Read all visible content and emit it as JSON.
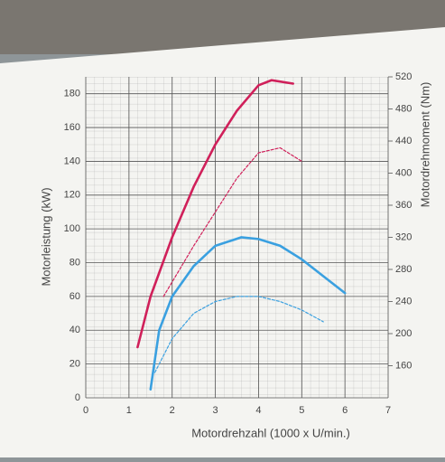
{
  "chart_data": {
    "type": "line",
    "xlabel": "Motordrehzahl (1000 x U/min.)",
    "ylabel": "Motorleistung (kW)",
    "y2label": "Motordrehmoment (Nm)",
    "xlim": [
      0,
      7
    ],
    "xticks": [
      0,
      1,
      2,
      3,
      4,
      5,
      6,
      7
    ],
    "ylim": [
      0,
      190
    ],
    "yticks": [
      0,
      20,
      40,
      60,
      80,
      100,
      120,
      140,
      160,
      180
    ],
    "y2lim": [
      120,
      520
    ],
    "y2ticks": [
      160,
      200,
      240,
      280,
      320,
      360,
      400,
      440,
      480,
      520
    ],
    "grid": true,
    "series": [
      {
        "color": "#d0205a",
        "dash": false,
        "x": [
          1.2,
          1.5,
          2,
          2.5,
          3,
          3.5,
          4,
          4.3,
          4.8
        ],
        "values": [
          30,
          60,
          95,
          125,
          150,
          170,
          185,
          188,
          186
        ]
      },
      {
        "color": "#d0205a",
        "dash": true,
        "x": [
          1.8,
          2.5,
          3,
          3.5,
          4,
          4.5,
          5
        ],
        "values": [
          60,
          90,
          110,
          130,
          145,
          148,
          140
        ]
      },
      {
        "color": "#3aa0e0",
        "dash": false,
        "x": [
          1.5,
          1.7,
          2,
          2.5,
          3,
          3.6,
          4,
          4.5,
          5,
          5.5,
          6
        ],
        "values": [
          5,
          40,
          60,
          78,
          90,
          95,
          94,
          90,
          82,
          72,
          62
        ]
      },
      {
        "color": "#3aa0e0",
        "dash": true,
        "x": [
          1.6,
          2,
          2.5,
          3,
          3.5,
          4,
          4.5,
          5,
          5.5
        ],
        "values": [
          15,
          35,
          50,
          57,
          60,
          60,
          57,
          52,
          45
        ]
      }
    ]
  }
}
